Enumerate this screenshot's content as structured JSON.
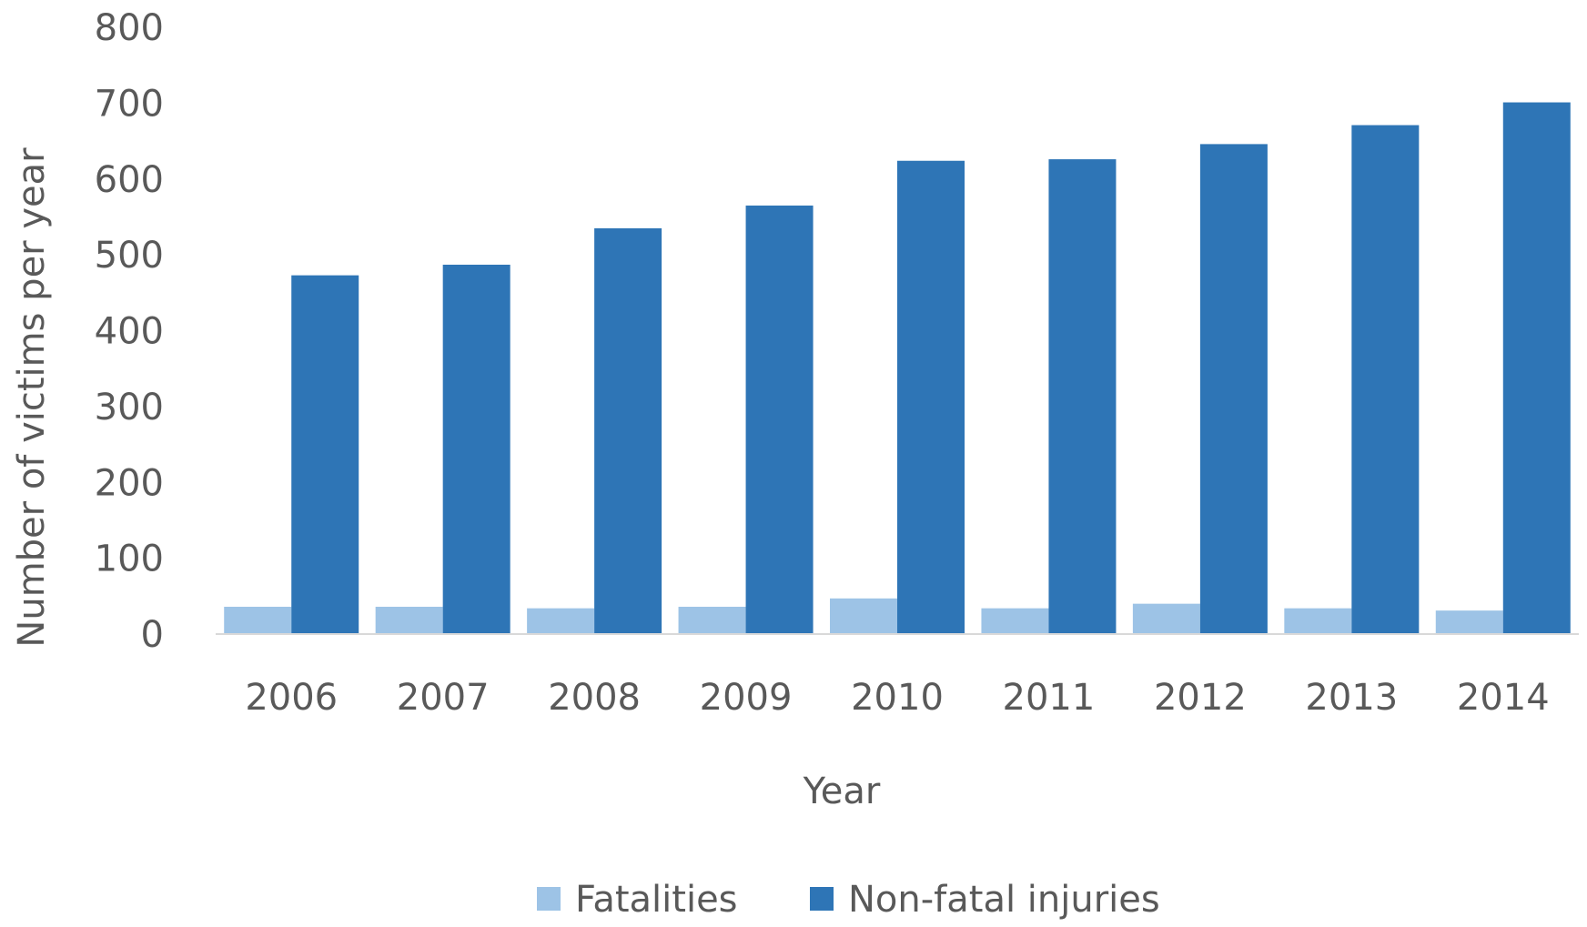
{
  "chart_data": {
    "type": "bar",
    "title": "",
    "xlabel": "Year",
    "ylabel": "Number of victims per year",
    "categories": [
      "2006",
      "2007",
      "2008",
      "2009",
      "2010",
      "2011",
      "2012",
      "2013",
      "2014"
    ],
    "series": [
      {
        "name": "Fatalities",
        "color": "#9DC3E6",
        "values": [
          36,
          36,
          34,
          36,
          47,
          34,
          40,
          34,
          31
        ]
      },
      {
        "name": "Non-fatal injuries",
        "color": "#2E75B6",
        "values": [
          473,
          487,
          535,
          565,
          624,
          626,
          646,
          671,
          701
        ]
      }
    ],
    "ylim": [
      0,
      800
    ],
    "yticks": [
      "0",
      "100",
      "200",
      "300",
      "400",
      "500",
      "600",
      "700",
      "800"
    ],
    "grid": false,
    "legend": "bottom",
    "baseline_color": "#D9D9D9"
  }
}
